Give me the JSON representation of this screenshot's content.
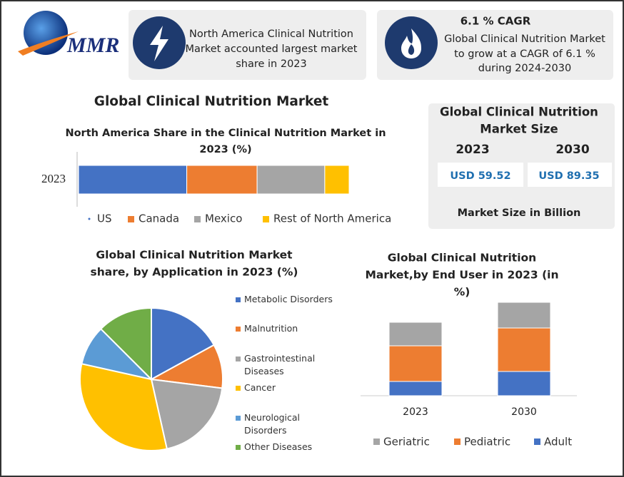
{
  "header": {
    "logo": "MMR"
  },
  "cards": [
    {
      "lines": [
        "North America Clinical Nutrition",
        "Market accounted largest market",
        "share in 2023"
      ]
    },
    {
      "title": "6.1 % CAGR",
      "lines": [
        "Global Clinical Nutrition Market",
        "to grow at a CAGR of 6.1 %",
        "during 2024-2030"
      ]
    }
  ],
  "title": "Global Clinical Nutrition  Market",
  "market_size": {
    "title": [
      "Global Clinical Nutrition",
      "Market Size"
    ],
    "years": [
      "2023",
      "2030"
    ],
    "values": [
      "USD 59.52",
      "USD 89.35"
    ],
    "note": "Market Size in Billion"
  },
  "chart_data": [
    {
      "type": "bar",
      "horizontal": true,
      "stacked": true,
      "title": [
        "North America Share in the Clinical Nutrition  Market in",
        "2023 (%)"
      ],
      "categories": [
        "2023"
      ],
      "series": [
        {
          "name": "US",
          "color": "#4472c4",
          "values": [
            40
          ]
        },
        {
          "name": "Canada",
          "color": "#ed7d31",
          "values": [
            26
          ]
        },
        {
          "name": "Mexico",
          "color": "#a5a5a5",
          "values": [
            25
          ]
        },
        {
          "name": "Rest of North America",
          "color": "#ffc000",
          "values": [
            9
          ]
        }
      ]
    },
    {
      "type": "pie",
      "title": [
        "Global Clinical Nutrition Market",
        "share, by Application in 2023  (%)"
      ],
      "categories": [
        "Metabolic Disorders",
        "Malnutrition",
        "Gastrointestinal Diseases",
        "Cancer",
        "Neurological Disorders",
        "Other Diseases"
      ],
      "values": [
        17,
        10,
        19.5,
        32,
        9,
        12.5
      ],
      "colors": [
        "#4472c4",
        "#ed7d31",
        "#a5a5a5",
        "#ffc000",
        "#5b9bd5",
        "#70ad47"
      ]
    },
    {
      "type": "bar",
      "stacked": true,
      "title": [
        "Global Clinical Nutrition",
        "Market,by End User in 2023 (in",
        "%)"
      ],
      "categories": [
        "2023",
        "2030"
      ],
      "series": [
        {
          "name": "Adult",
          "color": "#4472c4",
          "values": [
            20,
            34
          ]
        },
        {
          "name": "Pediatric",
          "color": "#ed7d31",
          "values": [
            50,
            61
          ]
        },
        {
          "name": "Geriatric",
          "color": "#a5a5a5",
          "values": [
            33,
            36
          ]
        }
      ]
    }
  ]
}
